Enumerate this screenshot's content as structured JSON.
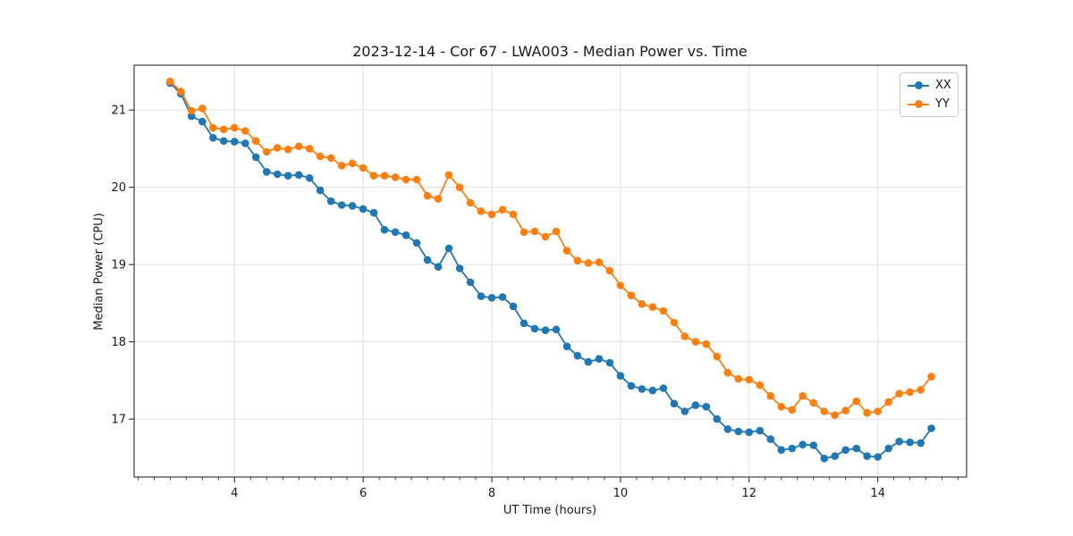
{
  "chart_data": {
    "type": "line",
    "title": "2023-12-14 - Cor 67 - LWA003 - Median Power vs. Time",
    "xlabel": "UT Time (hours)",
    "ylabel": "Median Power (CPU)",
    "xlim": [
      2.44,
      15.38
    ],
    "ylim": [
      16.25,
      21.58
    ],
    "xticks": [
      4,
      6,
      8,
      10,
      12,
      14
    ],
    "yticks": [
      17,
      18,
      19,
      20,
      21
    ],
    "x_minor_tick_step": 0.25,
    "grid": true,
    "legend_position": "upper right",
    "x": [
      3.0,
      3.167,
      3.333,
      3.5,
      3.667,
      3.833,
      4.0,
      4.167,
      4.333,
      4.5,
      4.667,
      4.833,
      5.0,
      5.167,
      5.333,
      5.5,
      5.667,
      5.833,
      6.0,
      6.167,
      6.333,
      6.5,
      6.667,
      6.833,
      7.0,
      7.167,
      7.333,
      7.5,
      7.667,
      7.833,
      8.0,
      8.167,
      8.333,
      8.5,
      8.667,
      8.833,
      9.0,
      9.167,
      9.333,
      9.5,
      9.667,
      9.833,
      10.0,
      10.167,
      10.333,
      10.5,
      10.667,
      10.833,
      11.0,
      11.167,
      11.333,
      11.5,
      11.667,
      11.833,
      12.0,
      12.167,
      12.333,
      12.5,
      12.667,
      12.833,
      13.0,
      13.167,
      13.333,
      13.5,
      13.667,
      13.833,
      14.0,
      14.167,
      14.333,
      14.5,
      14.667,
      14.833
    ],
    "series": [
      {
        "name": "XX",
        "color": "#1f77b4",
        "marker": "circle",
        "values": [
          21.35,
          21.21,
          20.92,
          20.85,
          20.64,
          20.6,
          20.59,
          20.57,
          20.39,
          20.2,
          20.17,
          20.15,
          20.16,
          20.12,
          19.96,
          19.82,
          19.77,
          19.76,
          19.72,
          19.67,
          19.45,
          19.42,
          19.38,
          19.28,
          19.06,
          18.97,
          19.21,
          18.95,
          18.77,
          18.59,
          18.57,
          18.58,
          18.46,
          18.24,
          18.17,
          18.15,
          18.16,
          17.94,
          17.82,
          17.74,
          17.78,
          17.73,
          17.56,
          17.43,
          17.39,
          17.37,
          17.4,
          17.2,
          17.1,
          17.18,
          17.16,
          17.0,
          16.87,
          16.84,
          16.83,
          16.85,
          16.74,
          16.6,
          16.62,
          16.67,
          16.66,
          16.49,
          16.52,
          16.6,
          16.62,
          16.52,
          16.51,
          16.62,
          16.71,
          16.7,
          16.69,
          16.88
        ]
      },
      {
        "name": "YY",
        "color": "#ff7f0e",
        "marker": "circle",
        "values": [
          21.37,
          21.24,
          20.99,
          21.02,
          20.77,
          20.75,
          20.77,
          20.73,
          20.6,
          20.46,
          20.51,
          20.49,
          20.53,
          20.5,
          20.4,
          20.38,
          20.28,
          20.31,
          20.25,
          20.15,
          20.15,
          20.13,
          20.1,
          20.1,
          19.89,
          19.85,
          20.16,
          20.0,
          19.8,
          19.69,
          19.65,
          19.71,
          19.65,
          19.42,
          19.43,
          19.36,
          19.43,
          19.18,
          19.05,
          19.02,
          19.03,
          18.92,
          18.73,
          18.6,
          18.49,
          18.45,
          18.4,
          18.25,
          18.07,
          18.0,
          17.97,
          17.81,
          17.6,
          17.52,
          17.51,
          17.44,
          17.3,
          17.16,
          17.12,
          17.3,
          17.21,
          17.1,
          17.05,
          17.11,
          17.23,
          17.08,
          17.1,
          17.22,
          17.33,
          17.35,
          17.38,
          17.55
        ]
      }
    ]
  }
}
